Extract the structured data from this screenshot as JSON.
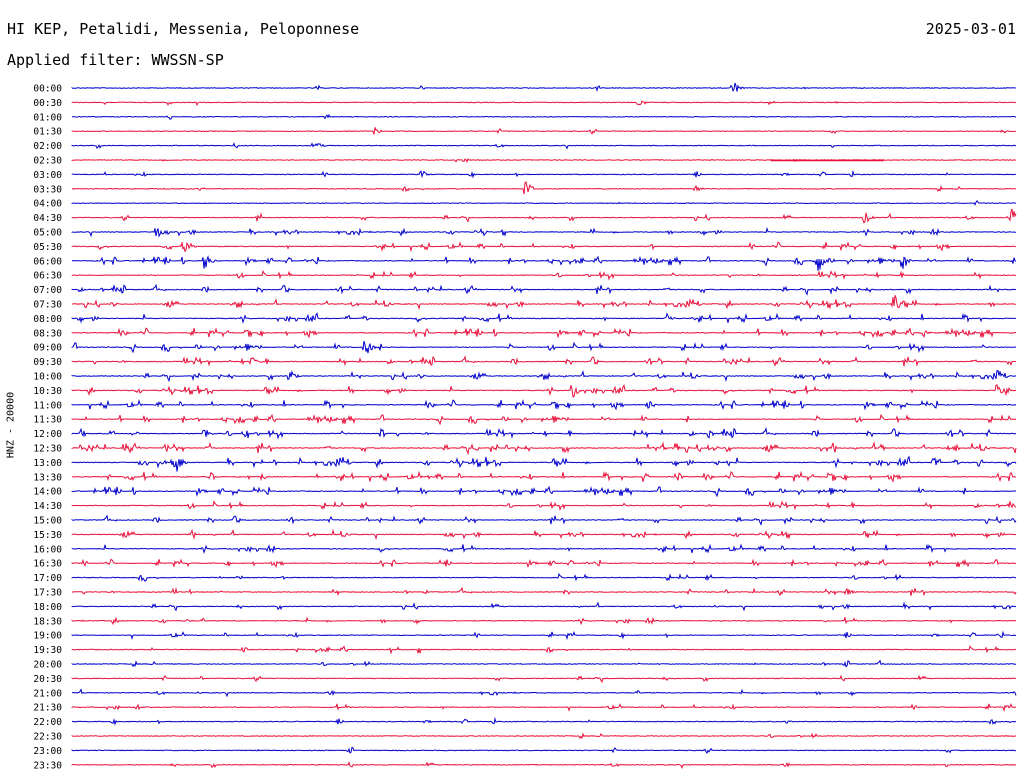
{
  "header": {
    "title": "HI KEP, Petalidi, Messenia, Peloponnese",
    "filter": "Applied filter: WWSSN-SP",
    "date": "2025-03-01"
  },
  "colors": {
    "even_trace": "#0000cc",
    "odd_trace": "#e8103a"
  },
  "chart_data": {
    "type": "line",
    "title": "HI KEP, Petalidi, Messenia, Peloponnese",
    "ylabel": "HNZ - 20000",
    "xlabel": "",
    "row_labels": [
      "00:00",
      "00:30",
      "01:00",
      "01:30",
      "02:00",
      "02:30",
      "03:00",
      "03:30",
      "04:00",
      "04:30",
      "05:00",
      "05:30",
      "06:00",
      "06:30",
      "07:00",
      "07:30",
      "08:00",
      "08:30",
      "09:00",
      "09:30",
      "10:00",
      "10:30",
      "11:00",
      "11:30",
      "12:00",
      "12:30",
      "13:00",
      "13:30",
      "14:00",
      "14:30",
      "15:00",
      "15:30",
      "16:00",
      "16:30",
      "17:00",
      "17:30",
      "18:00",
      "18:30",
      "19:00",
      "19:30",
      "20:00",
      "20:30",
      "21:00",
      "21:30",
      "22:00",
      "22:30",
      "23:00",
      "23:30"
    ],
    "row_activity": [
      0.1,
      0.08,
      0.06,
      0.08,
      0.06,
      0.08,
      0.15,
      0.15,
      0.1,
      0.3,
      0.4,
      0.5,
      0.6,
      0.6,
      0.6,
      0.6,
      0.7,
      0.7,
      0.7,
      0.7,
      0.6,
      0.7,
      0.7,
      0.7,
      0.8,
      0.9,
      0.9,
      0.8,
      0.7,
      0.6,
      0.5,
      0.5,
      0.6,
      0.4,
      0.4,
      0.4,
      0.3,
      0.3,
      0.2,
      0.3,
      0.2,
      0.2,
      0.2,
      0.2,
      0.15,
      0.15,
      0.15,
      0.1
    ],
    "events": [
      {
        "row": 0,
        "x": 0.7,
        "amp": 11
      },
      {
        "row": 1,
        "x": 0.6,
        "amp": 4
      },
      {
        "row": 3,
        "x": 0.32,
        "amp": 6
      },
      {
        "row": 4,
        "x": 0.26,
        "amp": 4
      },
      {
        "row": 6,
        "x": 0.37,
        "amp": 6
      },
      {
        "row": 7,
        "x": 0.48,
        "amp": 15
      },
      {
        "row": 7,
        "x": 0.66,
        "amp": 6
      },
      {
        "row": 9,
        "x": 0.84,
        "amp": 9
      },
      {
        "row": 9,
        "x": 0.995,
        "amp": 14
      },
      {
        "row": 10,
        "x": 0.09,
        "amp": 8
      },
      {
        "row": 11,
        "x": 0.12,
        "amp": 9
      },
      {
        "row": 12,
        "x": 0.14,
        "amp": 14
      },
      {
        "row": 12,
        "x": 0.79,
        "amp": 16
      },
      {
        "row": 12,
        "x": 0.88,
        "amp": 12
      },
      {
        "row": 15,
        "x": 0.87,
        "amp": 16
      },
      {
        "row": 16,
        "x": 0.63,
        "amp": 7
      },
      {
        "row": 17,
        "x": 0.9,
        "amp": 9
      },
      {
        "row": 18,
        "x": 0.31,
        "amp": 16
      },
      {
        "row": 19,
        "x": 0.19,
        "amp": 7
      },
      {
        "row": 20,
        "x": 0.23,
        "amp": 10
      },
      {
        "row": 20,
        "x": 0.98,
        "amp": 10
      },
      {
        "row": 21,
        "x": 0.53,
        "amp": 12
      },
      {
        "row": 21,
        "x": 0.98,
        "amp": 13
      },
      {
        "row": 22,
        "x": 0.61,
        "amp": 10
      },
      {
        "row": 24,
        "x": 0.14,
        "amp": 10
      },
      {
        "row": 26,
        "x": 0.11,
        "amp": 16
      },
      {
        "row": 27,
        "x": 0.64,
        "amp": 8
      },
      {
        "row": 35,
        "x": 0.82,
        "amp": 8
      },
      {
        "row": 39,
        "x": 0.18,
        "amp": 5
      }
    ],
    "segment": {
      "row": 5,
      "x0": 0.74,
      "x1": 0.86
    },
    "grid": false
  }
}
